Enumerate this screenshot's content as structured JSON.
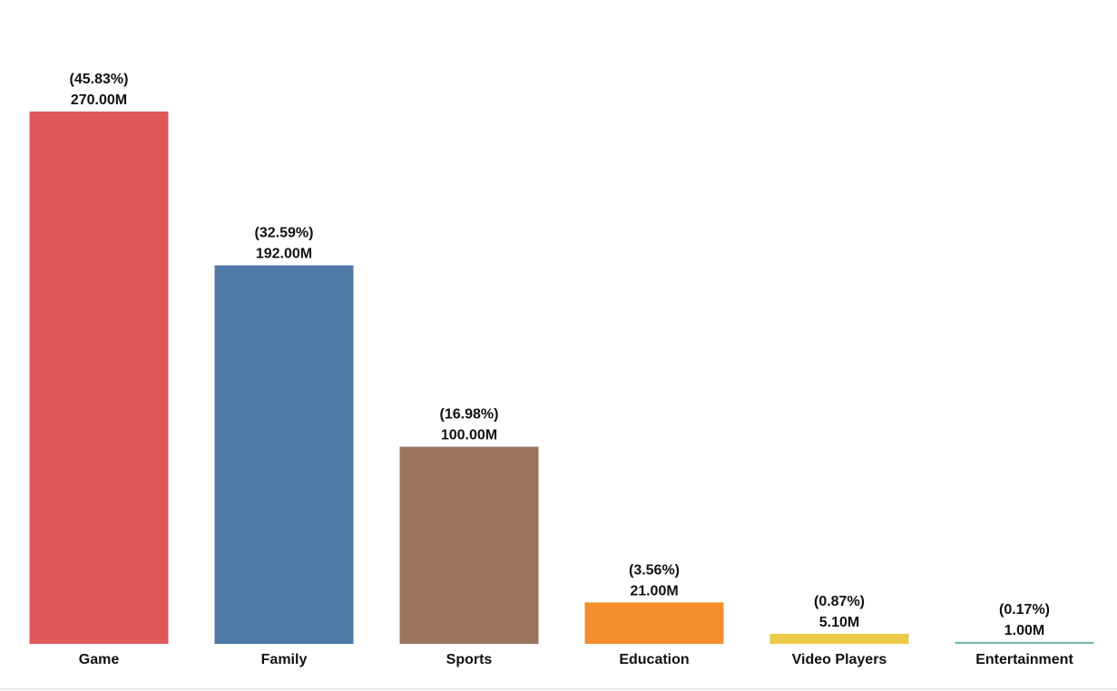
{
  "chart_data": {
    "type": "bar",
    "title": "",
    "xlabel": "",
    "ylabel": "",
    "categories": [
      "Game",
      "Family",
      "Sports",
      "Education",
      "Video Players",
      "Entertainment"
    ],
    "values": [
      270.0,
      192.0,
      100.0,
      21.0,
      5.1,
      1.0
    ],
    "value_labels": [
      "270.00M",
      "192.00M",
      "100.00M",
      "21.00M",
      "5.10M",
      "1.00M"
    ],
    "percent_labels": [
      "(45.83%)",
      "(32.59%)",
      "(16.98%)",
      "(3.56%)",
      "(0.87%)",
      "(0.17%)"
    ],
    "colors": [
      "#e15759",
      "#4e79a7",
      "#9c755f",
      "#f28e2b",
      "#edc948",
      "#76b7b2"
    ],
    "ylim": [
      0,
      270
    ],
    "grid": false,
    "legend": "none"
  }
}
